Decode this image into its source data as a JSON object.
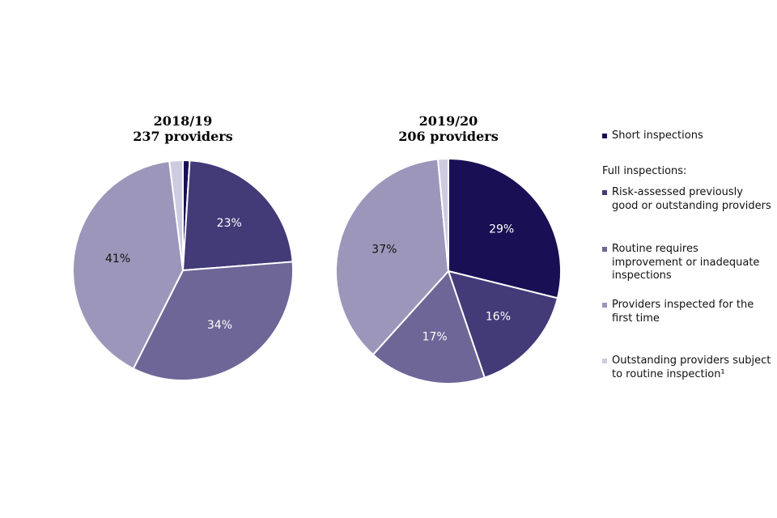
{
  "chart_data": [
    {
      "type": "pie",
      "title": "2018/19",
      "subtitle": "237 providers",
      "slices": [
        {
          "series": "Short inspections",
          "value": 1,
          "label": ""
        },
        {
          "series": "Risk-assessed previously good or outstanding providers",
          "value": 23,
          "label": "23%"
        },
        {
          "series": "Routine requires improvement or inadequate inspections",
          "value": 34,
          "label": "34%"
        },
        {
          "series": "Providers inspected for the first time",
          "value": 41,
          "label": "41%"
        },
        {
          "series": "Outstanding providers subject to routine inspection¹",
          "value": 2,
          "label": ""
        }
      ]
    },
    {
      "type": "pie",
      "title": "2019/20",
      "subtitle": "206 providers",
      "slices": [
        {
          "series": "Short inspections",
          "value": 29,
          "label": "29%"
        },
        {
          "series": "Risk-assessed previously good or outstanding providers",
          "value": 16,
          "label": "16%"
        },
        {
          "series": "Routine requires improvement or inadequate inspections",
          "value": 17,
          "label": "17%"
        },
        {
          "series": "Providers inspected for the first time",
          "value": 37,
          "label": "37%"
        },
        {
          "series": "Outstanding providers subject to routine inspection¹",
          "value": 1.5,
          "label": ""
        }
      ]
    }
  ],
  "legend": {
    "placement": "right",
    "short_label": "Short inspections",
    "full_heading": "Full inspections:",
    "items": [
      {
        "label": "Risk-assessed previously good or outstanding providers",
        "color": "#433a78"
      },
      {
        "label": "Routine requires improvement or inadequate inspections",
        "color": "#6e6697"
      },
      {
        "label": "Providers inspected for the first time",
        "color": "#9c96ba"
      },
      {
        "label": "Outstanding providers subject to routine inspection¹",
        "color": "#cccbe0"
      }
    ],
    "short_color": "#190f54"
  },
  "colors": [
    "#190f54",
    "#433a78",
    "#6e6697",
    "#9c96ba",
    "#cccbe0"
  ],
  "label_colors": [
    "#ffffff",
    "#ffffff",
    "#ffffff",
    "#111111",
    "#111111"
  ]
}
